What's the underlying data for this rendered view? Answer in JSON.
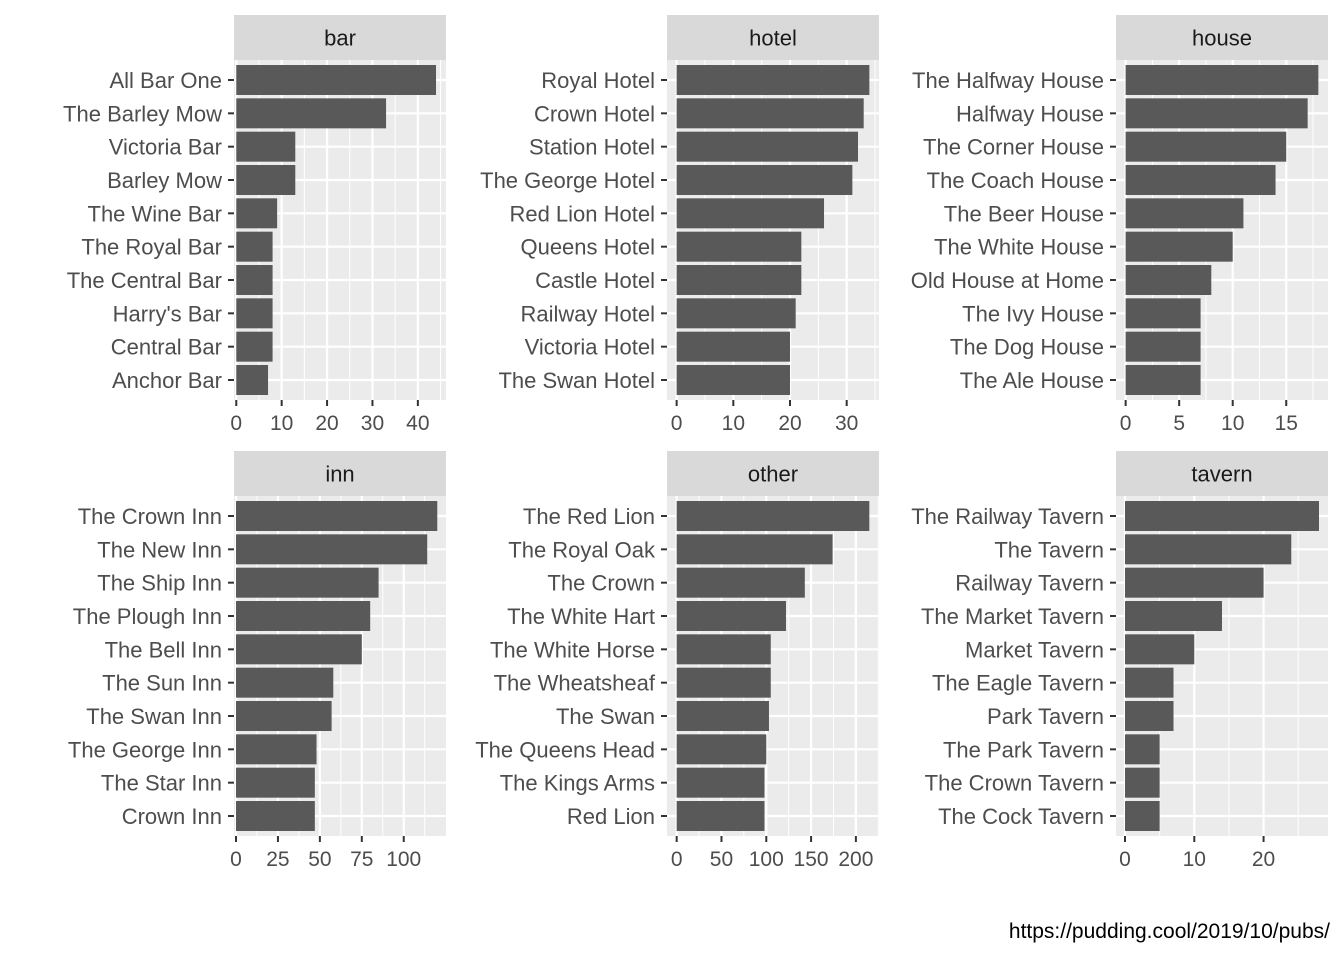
{
  "caption": "https://pudding.cool/2019/10/pubs/",
  "colors": {
    "bar": "#595959",
    "panel_bg": "#ebebeb",
    "strip_bg": "#d9d9d9",
    "grid": "#ffffff",
    "text": "#4d4d4d",
    "strip_text": "#1a1a1a"
  },
  "chart_data": [
    {
      "type": "bar",
      "orientation": "horizontal",
      "facet": "bar",
      "categories": [
        "All Bar One",
        "The Barley Mow",
        "Victoria Bar",
        "Barley Mow",
        "The Wine Bar",
        "The Royal Bar",
        "The Central Bar",
        "Harry's Bar",
        "Central Bar",
        "Anchor Bar"
      ],
      "values": [
        44,
        33,
        13,
        13,
        9,
        8,
        8,
        8,
        8,
        7
      ],
      "ticks": [
        0,
        10,
        20,
        30,
        40
      ],
      "xlim": [
        -0.5,
        46.2
      ]
    },
    {
      "type": "bar",
      "orientation": "horizontal",
      "facet": "hotel",
      "categories": [
        "Royal Hotel",
        "Crown Hotel",
        "Station Hotel",
        "The George Hotel",
        "Red Lion Hotel",
        "Queens Hotel",
        "Castle Hotel",
        "Railway Hotel",
        "Victoria Hotel",
        "The Swan Hotel"
      ],
      "values": [
        34,
        33,
        32,
        31,
        26,
        22,
        22,
        21,
        20,
        20
      ],
      "ticks": [
        0,
        10,
        20,
        30
      ],
      "xlim": [
        -1.7,
        35.7
      ]
    },
    {
      "type": "bar",
      "orientation": "horizontal",
      "facet": "house",
      "categories": [
        "The Halfway House",
        "Halfway House",
        "The Corner House",
        "The Coach House",
        "The Beer House",
        "The White House",
        "Old House at Home",
        "The Ivy House",
        "The Dog House",
        "The Ale House"
      ],
      "values": [
        18,
        17,
        15,
        14,
        11,
        10,
        8,
        7,
        7,
        7
      ],
      "ticks": [
        0,
        5,
        10,
        15
      ],
      "xlim": [
        -0.9,
        18.9
      ]
    },
    {
      "type": "bar",
      "orientation": "horizontal",
      "facet": "inn",
      "categories": [
        "The Crown Inn",
        "The New Inn",
        "The Ship Inn",
        "The Plough Inn",
        "The Bell Inn",
        "The Sun Inn",
        "The Swan Inn",
        "The George Inn",
        "The Star Inn",
        "Crown Inn"
      ],
      "values": [
        120,
        114,
        85,
        80,
        75,
        58,
        57,
        48,
        47,
        47
      ],
      "ticks": [
        0,
        25,
        50,
        75,
        100
      ],
      "xlim": [
        -1.2,
        125.2
      ]
    },
    {
      "type": "bar",
      "orientation": "horizontal",
      "facet": "other",
      "categories": [
        "The Red Lion",
        "The Royal Oak",
        "The Crown",
        "The White Hart",
        "The White Horse",
        "The Wheatsheaf",
        "The Swan",
        "The Queens Head",
        "The Kings Arms",
        "Red Lion"
      ],
      "values": [
        215,
        174,
        143,
        122,
        105,
        105,
        103,
        100,
        98,
        98
      ],
      "ticks": [
        0,
        50,
        100,
        150,
        200
      ],
      "xlim": [
        -10.8,
        225.8
      ]
    },
    {
      "type": "bar",
      "orientation": "horizontal",
      "facet": "tavern",
      "categories": [
        "The Railway Tavern",
        "The Tavern",
        "Railway Tavern",
        "The Market Tavern",
        "Market Tavern",
        "The Eagle Tavern",
        "Park Tavern",
        "The Park Tavern",
        "The Crown Tavern",
        "The Cock Tavern"
      ],
      "values": [
        28,
        24,
        20,
        14,
        10,
        7,
        7,
        5,
        5,
        5
      ],
      "ticks": [
        0,
        10,
        20
      ],
      "xlim": [
        -1.3,
        29.3
      ]
    }
  ]
}
